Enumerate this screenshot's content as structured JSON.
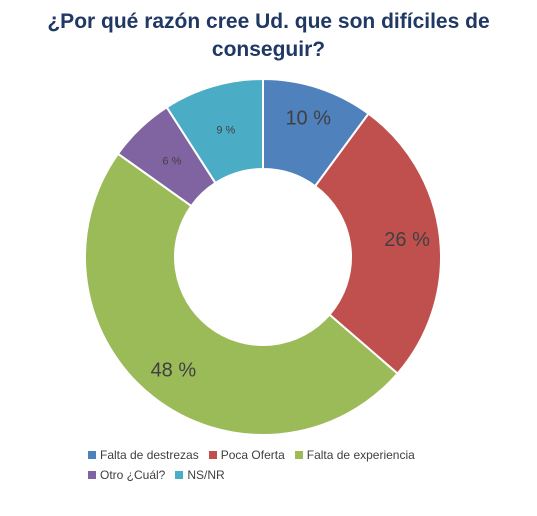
{
  "chart_data": {
    "type": "pie",
    "title": "¿Por qué razón cree Ud. que son difíciles de\nconseguir?",
    "categories": [
      "Falta de destrezas",
      "Poca Oferta",
      "Falta de experiencia",
      "Otro ¿Cuál?",
      "NS/NR"
    ],
    "values": [
      10,
      26,
      48,
      6,
      9
    ],
    "labels": [
      "10 %",
      "26 %",
      "48 %",
      "6 %",
      "9 %"
    ],
    "colors": [
      "#4f81bd",
      "#c0504d",
      "#9bbb59",
      "#8064a2",
      "#4bacc6"
    ],
    "legend_position": "bottom"
  },
  "legend": {
    "rows": [
      [
        0,
        1,
        2
      ],
      [
        3,
        4
      ]
    ]
  }
}
